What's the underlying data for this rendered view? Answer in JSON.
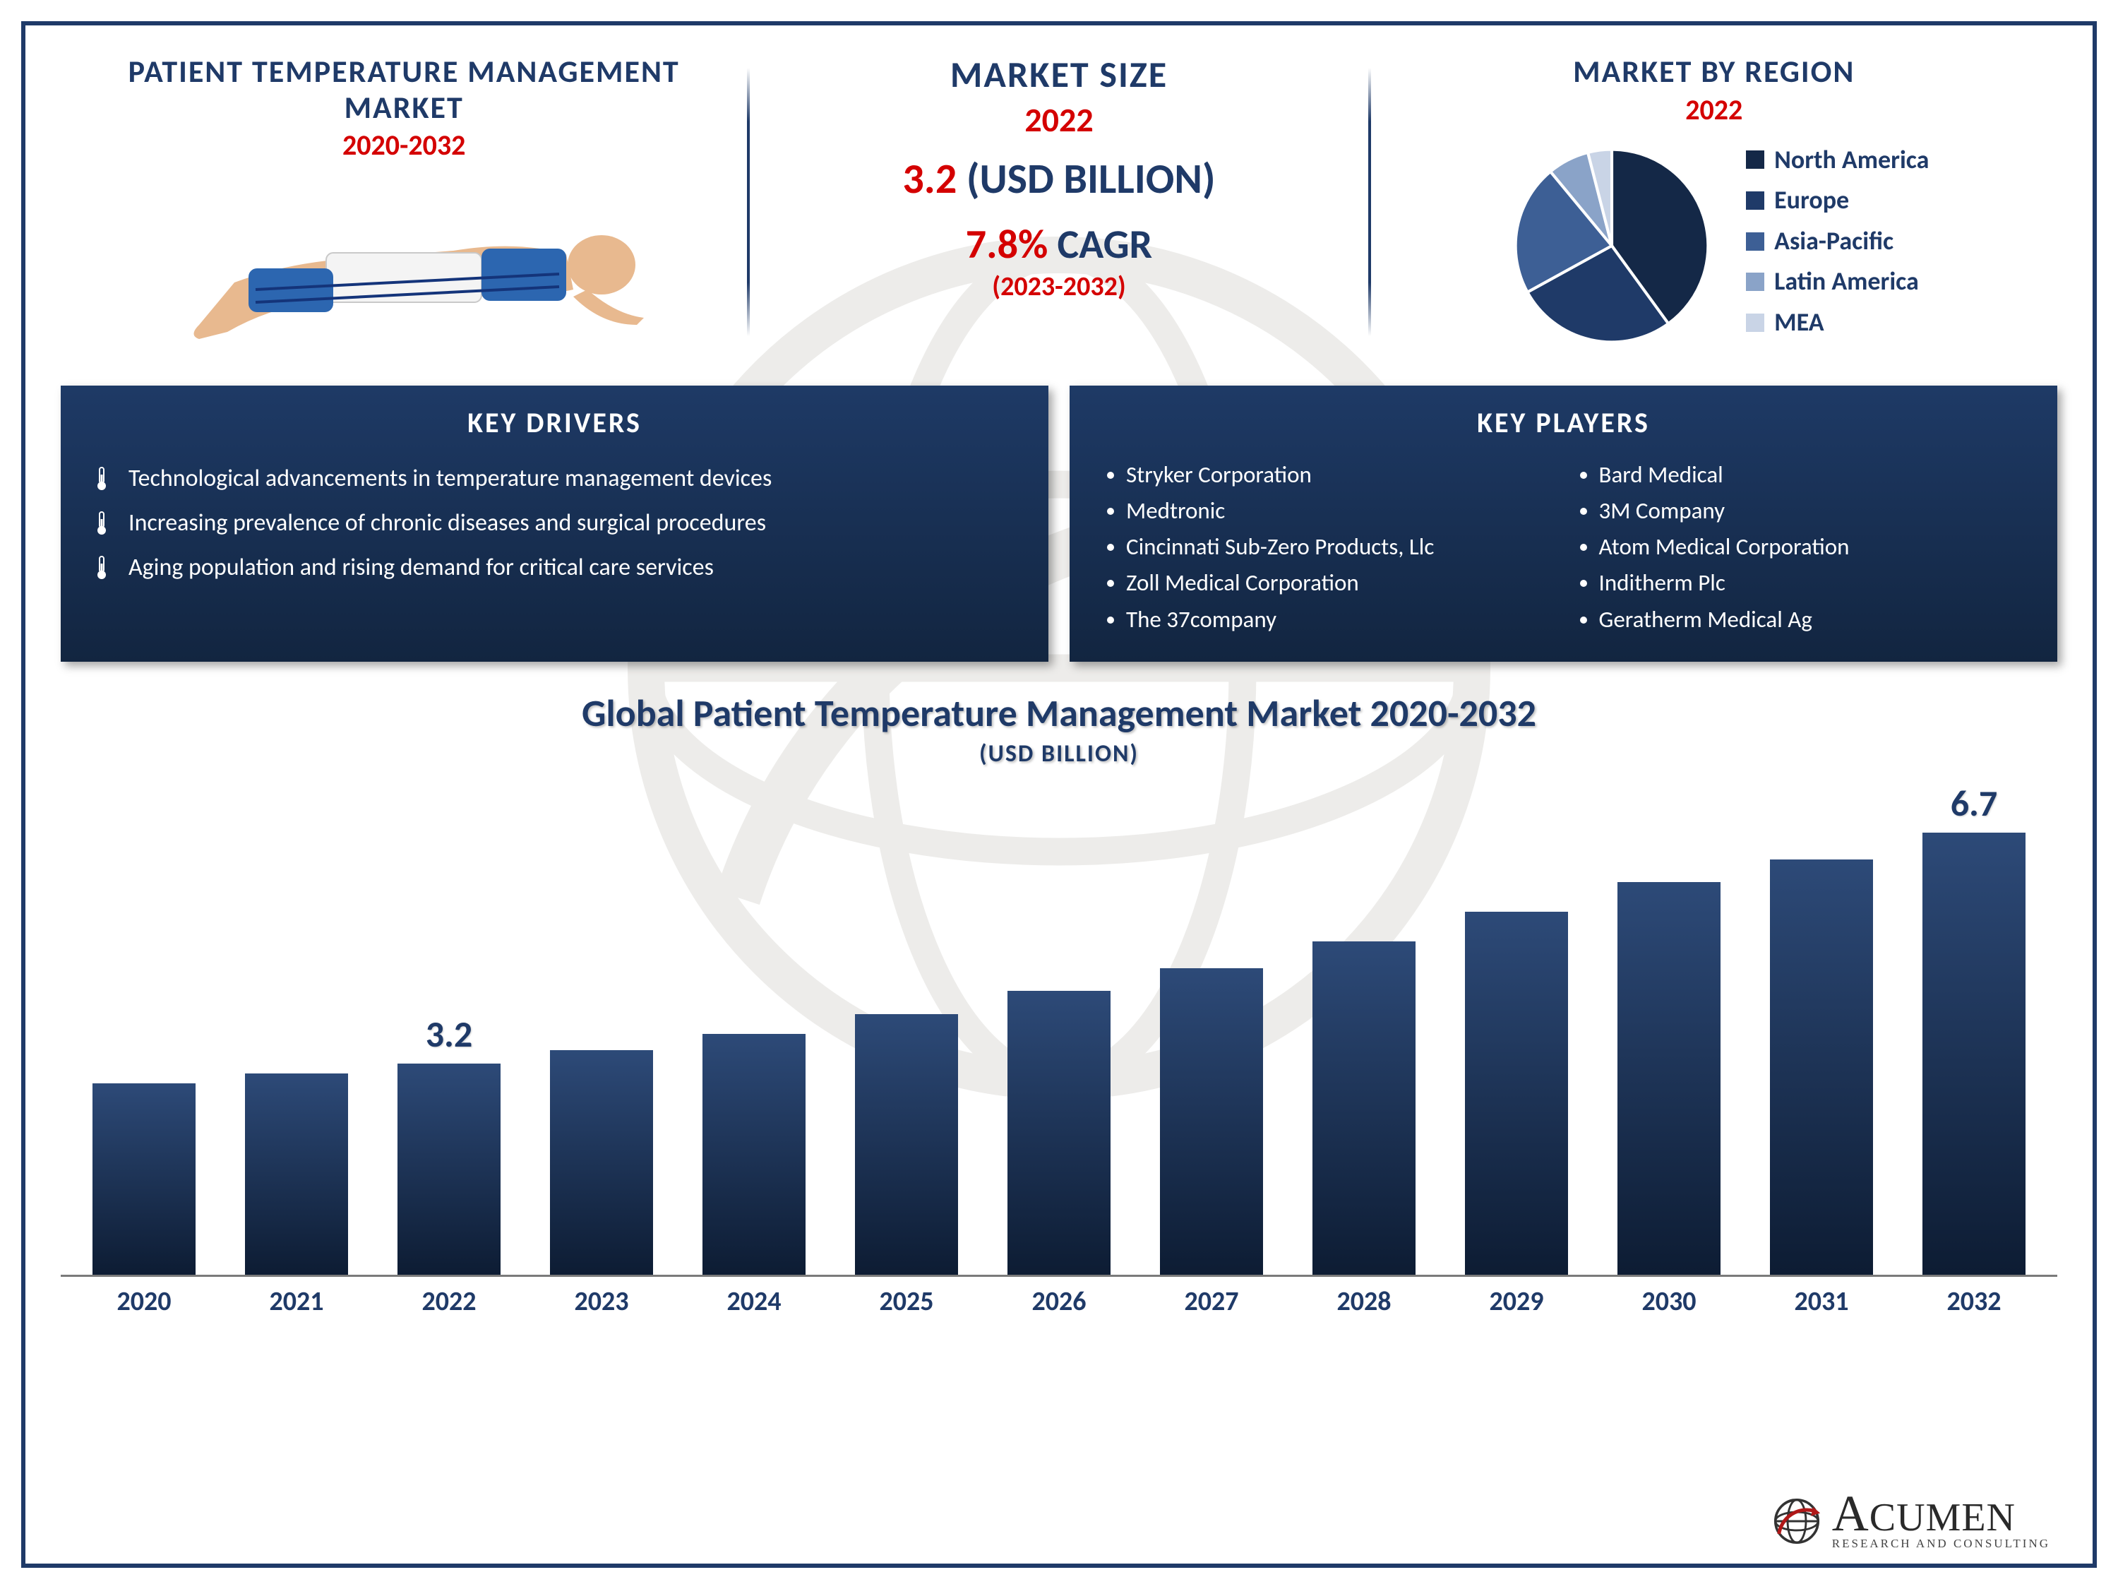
{
  "colors": {
    "primary": "#1f3a68",
    "accent_red": "#d40000",
    "box_grad_top": "#1e3a66",
    "box_grad_bottom": "#122540",
    "bar_grad_top": "#2d4a78",
    "bar_grad_bottom": "#0d1c33",
    "axis_line": "#7a7a7a"
  },
  "header_left": {
    "line1": "PATIENT TEMPERATURE MANAGEMENT",
    "line2": "MARKET",
    "range": "2020-2032"
  },
  "market_size": {
    "title": "MARKET SIZE",
    "year": "2022",
    "value_num": "3.2",
    "value_unit": " (USD BILLION)",
    "cagr_num": "7.8%",
    "cagr_label": " CAGR",
    "cagr_range": "(2023-2032)"
  },
  "region": {
    "title": "MARKET BY REGION",
    "year": "2022",
    "slices": [
      {
        "label": "North America",
        "value": 40,
        "color": "#142847"
      },
      {
        "label": "Europe",
        "value": 27,
        "color": "#1f3a68"
      },
      {
        "label": "Asia-Pacific",
        "value": 22,
        "color": "#3d5f95"
      },
      {
        "label": "Latin America",
        "value": 7,
        "color": "#8aa3c8"
      },
      {
        "label": "MEA",
        "value": 4,
        "color": "#c9d4e6"
      }
    ]
  },
  "drivers": {
    "title": "KEY DRIVERS",
    "items": [
      "Technological advancements in temperature management devices",
      "Increasing prevalence of chronic diseases and surgical procedures",
      "Aging population and rising demand for critical care services"
    ]
  },
  "players": {
    "title": "KEY PLAYERS",
    "col1": [
      "Stryker Corporation",
      "Medtronic",
      "Cincinnati Sub-Zero Products, Llc",
      "Zoll Medical Corporation",
      "The 37company"
    ],
    "col2": [
      "Bard Medical",
      "3M Company",
      "Atom Medical Corporation",
      "Inditherm Plc",
      "Geratherm Medical Ag"
    ]
  },
  "bar_chart": {
    "title": "Global Patient Temperature Management Market 2020-2032",
    "subtitle": "(USD BILLION)",
    "type": "bar",
    "ymax": 7.5,
    "bar_width_pct": 68,
    "categories": [
      "2020",
      "2021",
      "2022",
      "2023",
      "2024",
      "2025",
      "2026",
      "2027",
      "2028",
      "2029",
      "2030",
      "2031",
      "2032"
    ],
    "values": [
      2.9,
      3.05,
      3.2,
      3.4,
      3.65,
      3.95,
      4.3,
      4.65,
      5.05,
      5.5,
      5.95,
      6.3,
      6.7
    ],
    "value_labels": {
      "2": "3.2",
      "12": "6.7"
    }
  },
  "logo": {
    "name": "ACUMEN",
    "tag": "RESEARCH AND CONSULTING"
  }
}
